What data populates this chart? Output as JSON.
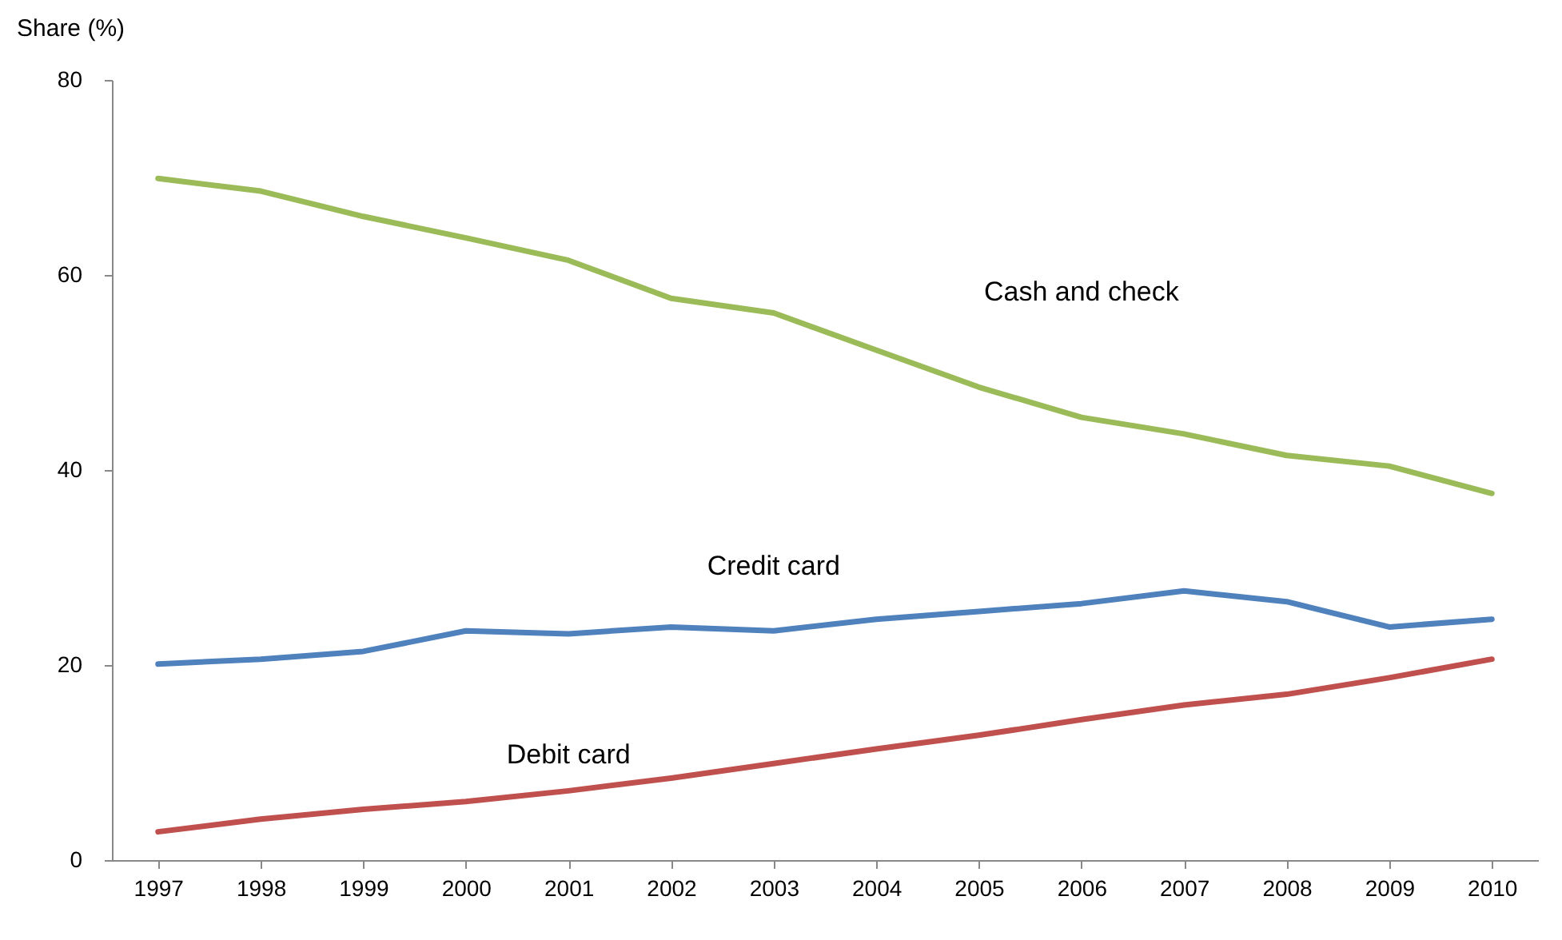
{
  "chart_data": {
    "type": "line",
    "ylabel": "Share (%)",
    "categories": [
      "1997",
      "1998",
      "1999",
      "2000",
      "2001",
      "2002",
      "2003",
      "2004",
      "2005",
      "2006",
      "2007",
      "2008",
      "2009",
      "2010"
    ],
    "ylim": [
      0,
      80
    ],
    "yticks": [
      0,
      20,
      40,
      60,
      80
    ],
    "grid": false,
    "series": [
      {
        "name": "Cash and check",
        "color": "#9bbb59",
        "values": [
          69.9,
          68.6,
          66.0,
          63.8,
          61.5,
          57.6,
          56.1,
          52.3,
          48.5,
          45.4,
          43.7,
          41.5,
          40.4,
          37.6
        ]
      },
      {
        "name": "Credit card",
        "color": "#4f81bd",
        "values": [
          20.1,
          20.6,
          21.4,
          23.5,
          23.2,
          23.9,
          23.5,
          24.7,
          25.5,
          26.3,
          27.6,
          26.5,
          23.9,
          24.7
        ]
      },
      {
        "name": "Debit card",
        "color": "#c0504d",
        "values": [
          2.9,
          4.2,
          5.2,
          6.0,
          7.1,
          8.4,
          9.9,
          11.4,
          12.8,
          14.4,
          15.9,
          17.0,
          18.7,
          20.6
        ]
      }
    ]
  }
}
